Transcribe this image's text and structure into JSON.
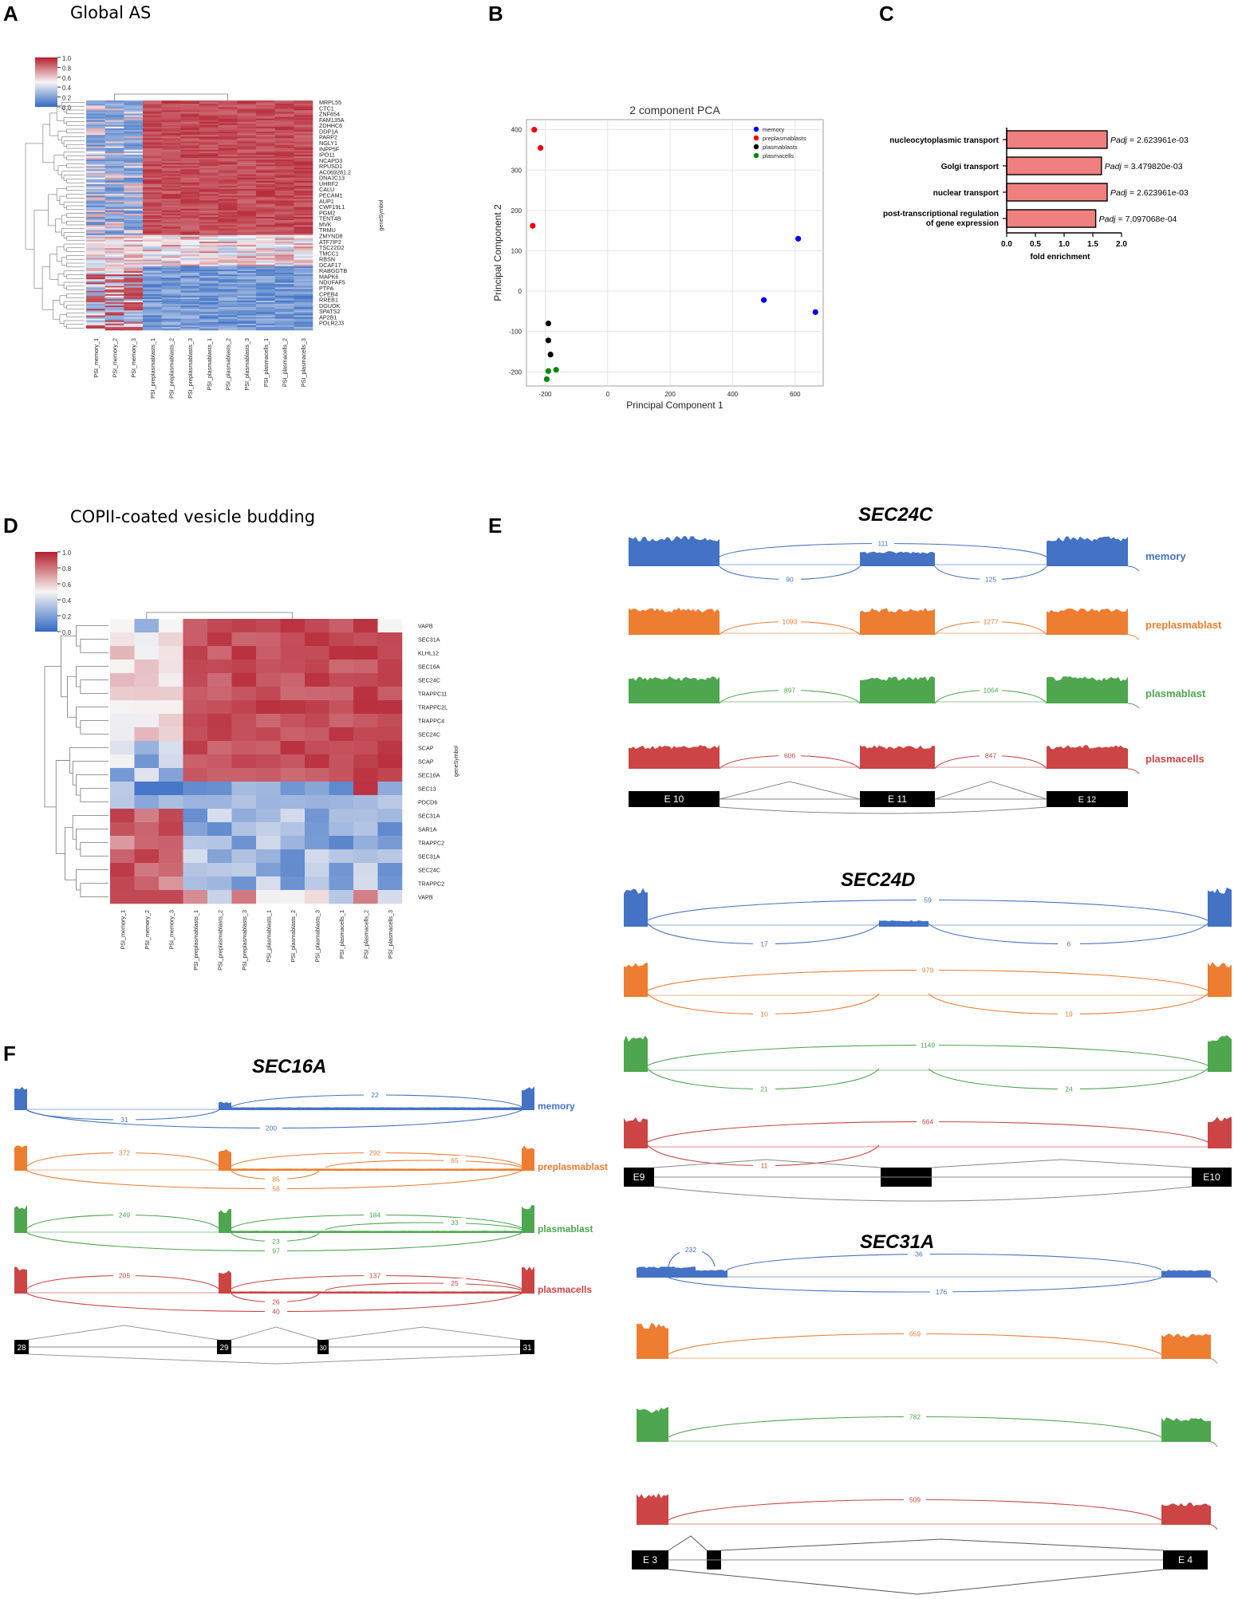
{
  "panels": {
    "A": {
      "label": "A",
      "title": "Global AS"
    },
    "B": {
      "label": "B"
    },
    "C": {
      "label": "C"
    },
    "D": {
      "label": "D",
      "title": "COPII-coated vesicle budding"
    },
    "E": {
      "label": "E"
    },
    "F": {
      "label": "F"
    }
  },
  "colorbar": {
    "ticks": [
      "1.0",
      "0.8",
      "0.6",
      "0.4",
      "0.2",
      "0.0"
    ]
  },
  "heatmap_columns": [
    "PSI_memory_1",
    "PSI_memory_2",
    "PSI_memory_3",
    "PSI_preplasmablasts_1",
    "PSI_preplasmablasts_2",
    "PSI_preplasmablasts_3",
    "PSI_plasmablasts_1",
    "PSI_plasmablasts_2",
    "PSI_plasmablasts_3",
    "PSI_plasmacells_1",
    "PSI_plasmacells_2",
    "PSI_plasmacells_3"
  ],
  "heatmap_A": {
    "rows_label": "geneSymbol",
    "genes": [
      "MRPL55",
      "CTC1",
      "ZNF654",
      "FAM135A",
      "ZDHHC6",
      "DDP1A",
      "PARP2",
      "NGLY1",
      "INPP5F",
      "IPO11",
      "NCAPD3",
      "RPUSD1",
      "AC069281.2",
      "DNAJC13",
      "UHRF2",
      "CALU",
      "PECAM1",
      "AUP1",
      "CWF19L1",
      "PGM2",
      "TENT4B",
      "MVK",
      "TRMU",
      "ZMYND8",
      "ATF7IP2",
      "TSC22D2",
      "TMCC1",
      "RBSN",
      "DCAF17",
      "RABGGTB",
      "MAPK6",
      "NDUFAF5",
      "PTPA",
      "CPEB4",
      "RREB1",
      "DGUOK",
      "SPATS2",
      "AP2B1",
      "POLR2J3"
    ]
  },
  "chart_data": [
    {
      "type": "scatter",
      "title": "2 component PCA",
      "xlabel": "Principal Component 1",
      "ylabel": "Principal Component 2",
      "xticks": [
        -200,
        0,
        200,
        400,
        600
      ],
      "yticks": [
        400,
        300,
        200,
        100,
        0,
        -100,
        -200
      ],
      "xlim": [
        -260,
        690
      ],
      "ylim": [
        -235,
        425
      ],
      "grid": true,
      "legend_position": "top-right",
      "series": [
        {
          "name": "memory",
          "color": "#0000ee",
          "points": [
            [
              610,
              130
            ],
            [
              500,
              -22
            ],
            [
              665,
              -52
            ]
          ]
        },
        {
          "name": "preplasmablasts",
          "color": "#ee0000",
          "points": [
            [
              -235,
              400
            ],
            [
              -215,
              355
            ],
            [
              -240,
              162
            ]
          ]
        },
        {
          "name": "plasmablasts",
          "color": "#000000",
          "points": [
            [
              -190,
              -80
            ],
            [
              -190,
              -122
            ],
            [
              -183,
              -157
            ]
          ]
        },
        {
          "name": "plasmacells",
          "color": "#008800",
          "points": [
            [
              -190,
              -198
            ],
            [
              -165,
              -195
            ],
            [
              -195,
              -218
            ]
          ]
        }
      ]
    },
    {
      "type": "bar",
      "orientation": "horizontal",
      "xlabel": "fold enrichment",
      "xticks": [
        "0.0",
        "0.5",
        "1.0",
        "1.5",
        "2.0"
      ],
      "xlim": [
        0,
        2.0
      ],
      "bar_color": "#f08080",
      "categories": [
        "nucleocytoplasmic transport",
        "Golgi transport",
        "nuclear transport",
        "post-transcriptional regulation of gene expression"
      ],
      "values": [
        1.75,
        1.65,
        1.75,
        1.55
      ],
      "annotations": [
        "= 2.623961e-03",
        "= 3.479820e-03",
        "= 2.623961e-03",
        "= 7.097068e-04"
      ],
      "annotation_prefix": "Padj"
    }
  ],
  "heatmap_D": {
    "rows_label": "geneSymbol",
    "genes": [
      "VAPB",
      "SEC31A",
      "KLHL12",
      "SEC16A",
      "SEC24C",
      "TRAPPC11",
      "TRAPPC2L",
      "TRAPPC4",
      "SEC24C",
      "SCAP",
      "SCAP",
      "SEC16A",
      "SEC13",
      "PDCD6",
      "SEC31A",
      "SAR1A",
      "TRAPPC2",
      "SEC31A",
      "SEC24C",
      "TRAPPC2",
      "VAPB"
    ]
  },
  "sashimi": {
    "groups": [
      {
        "name": "memory",
        "color": "#4472c4"
      },
      {
        "name": "preplasmablast",
        "color": "#ed7d31"
      },
      {
        "name": "plasmablast",
        "color": "#4ea64e"
      },
      {
        "name": "plasmacells",
        "color": "#cc4444"
      }
    ],
    "SEC24C": {
      "gene": "SEC24C",
      "counts": [
        [
          "111",
          "90",
          "125"
        ],
        [
          "1093",
          "1277"
        ],
        [
          "897",
          "1064"
        ],
        [
          "606",
          "847"
        ]
      ],
      "exons": [
        "E 10",
        "E 11",
        "E 12"
      ]
    },
    "SEC24D": {
      "gene": "SEC24D",
      "counts": [
        [
          "59",
          "17",
          "6"
        ],
        [
          "979",
          "10",
          "19"
        ],
        [
          "1149",
          "21",
          "24"
        ],
        [
          "664",
          "11"
        ]
      ],
      "exons": [
        "E9",
        "E10"
      ]
    },
    "SEC31A": {
      "gene": "SEC31A",
      "counts": [
        [
          "232",
          "36",
          "176"
        ],
        [
          "659"
        ],
        [
          "782"
        ],
        [
          "509"
        ]
      ],
      "exons": [
        "E 3",
        "E 4"
      ]
    },
    "SEC16A": {
      "gene": "SEC16A",
      "counts": [
        [
          "22",
          "31",
          "200"
        ],
        [
          "372",
          "292",
          "65",
          "85",
          "56"
        ],
        [
          "249",
          "184",
          "33",
          "23",
          "97"
        ],
        [
          "205",
          "137",
          "25",
          "26",
          "40"
        ]
      ],
      "exons": [
        "28",
        "29",
        "30",
        "31"
      ]
    }
  }
}
